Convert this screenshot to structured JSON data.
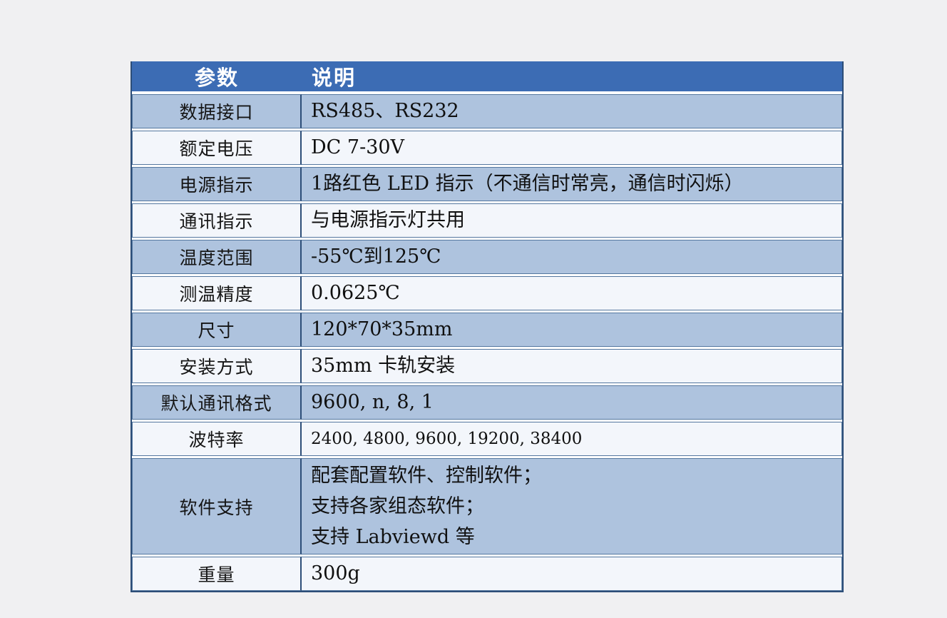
{
  "page": {
    "background_color": "#f0f0f2"
  },
  "table": {
    "colors": {
      "header_bg": "#3c6cb4",
      "header_text": "#ffffff",
      "row_blue_bg": "#aec3de",
      "row_light_bg": "#f3f6fb",
      "border_dark": "#2d4e78",
      "cell_border": "#54779f",
      "body_text": "#101010"
    },
    "header": {
      "param_label": "参数",
      "desc_label": "说明"
    },
    "rows": [
      {
        "param": "数据接口",
        "desc": "RS485、RS232",
        "shade": "blue"
      },
      {
        "param": "额定电压",
        "desc": "DC 7-30V",
        "shade": "light"
      },
      {
        "param": "电源指示",
        "desc": "1路红色 LED 指示（不通信时常亮，通信时闪烁）",
        "shade": "blue"
      },
      {
        "param": "通讯指示",
        "desc": "与电源指示灯共用",
        "shade": "light"
      },
      {
        "param": "温度范围",
        "desc": "-55℃到125℃",
        "shade": "blue"
      },
      {
        "param": "测温精度",
        "desc": "0.0625℃",
        "shade": "light"
      },
      {
        "param": "尺寸",
        "desc": "120*70*35mm",
        "shade": "blue"
      },
      {
        "param": "安装方式",
        "desc": "35mm 卡轨安装",
        "shade": "light"
      },
      {
        "param": "默认通讯格式",
        "desc": "9600, n, 8, 1",
        "shade": "blue"
      },
      {
        "param": "波特率",
        "desc": "2400, 4800, 9600, 19200, 38400",
        "shade": "light",
        "small": true
      },
      {
        "param": "软件支持",
        "desc_lines": [
          "配套配置软件、控制软件；",
          "支持各家组态软件；",
          "支持 Labviewd 等"
        ],
        "shade": "blue"
      },
      {
        "param": "重量",
        "desc": "300g",
        "shade": "light"
      }
    ]
  }
}
